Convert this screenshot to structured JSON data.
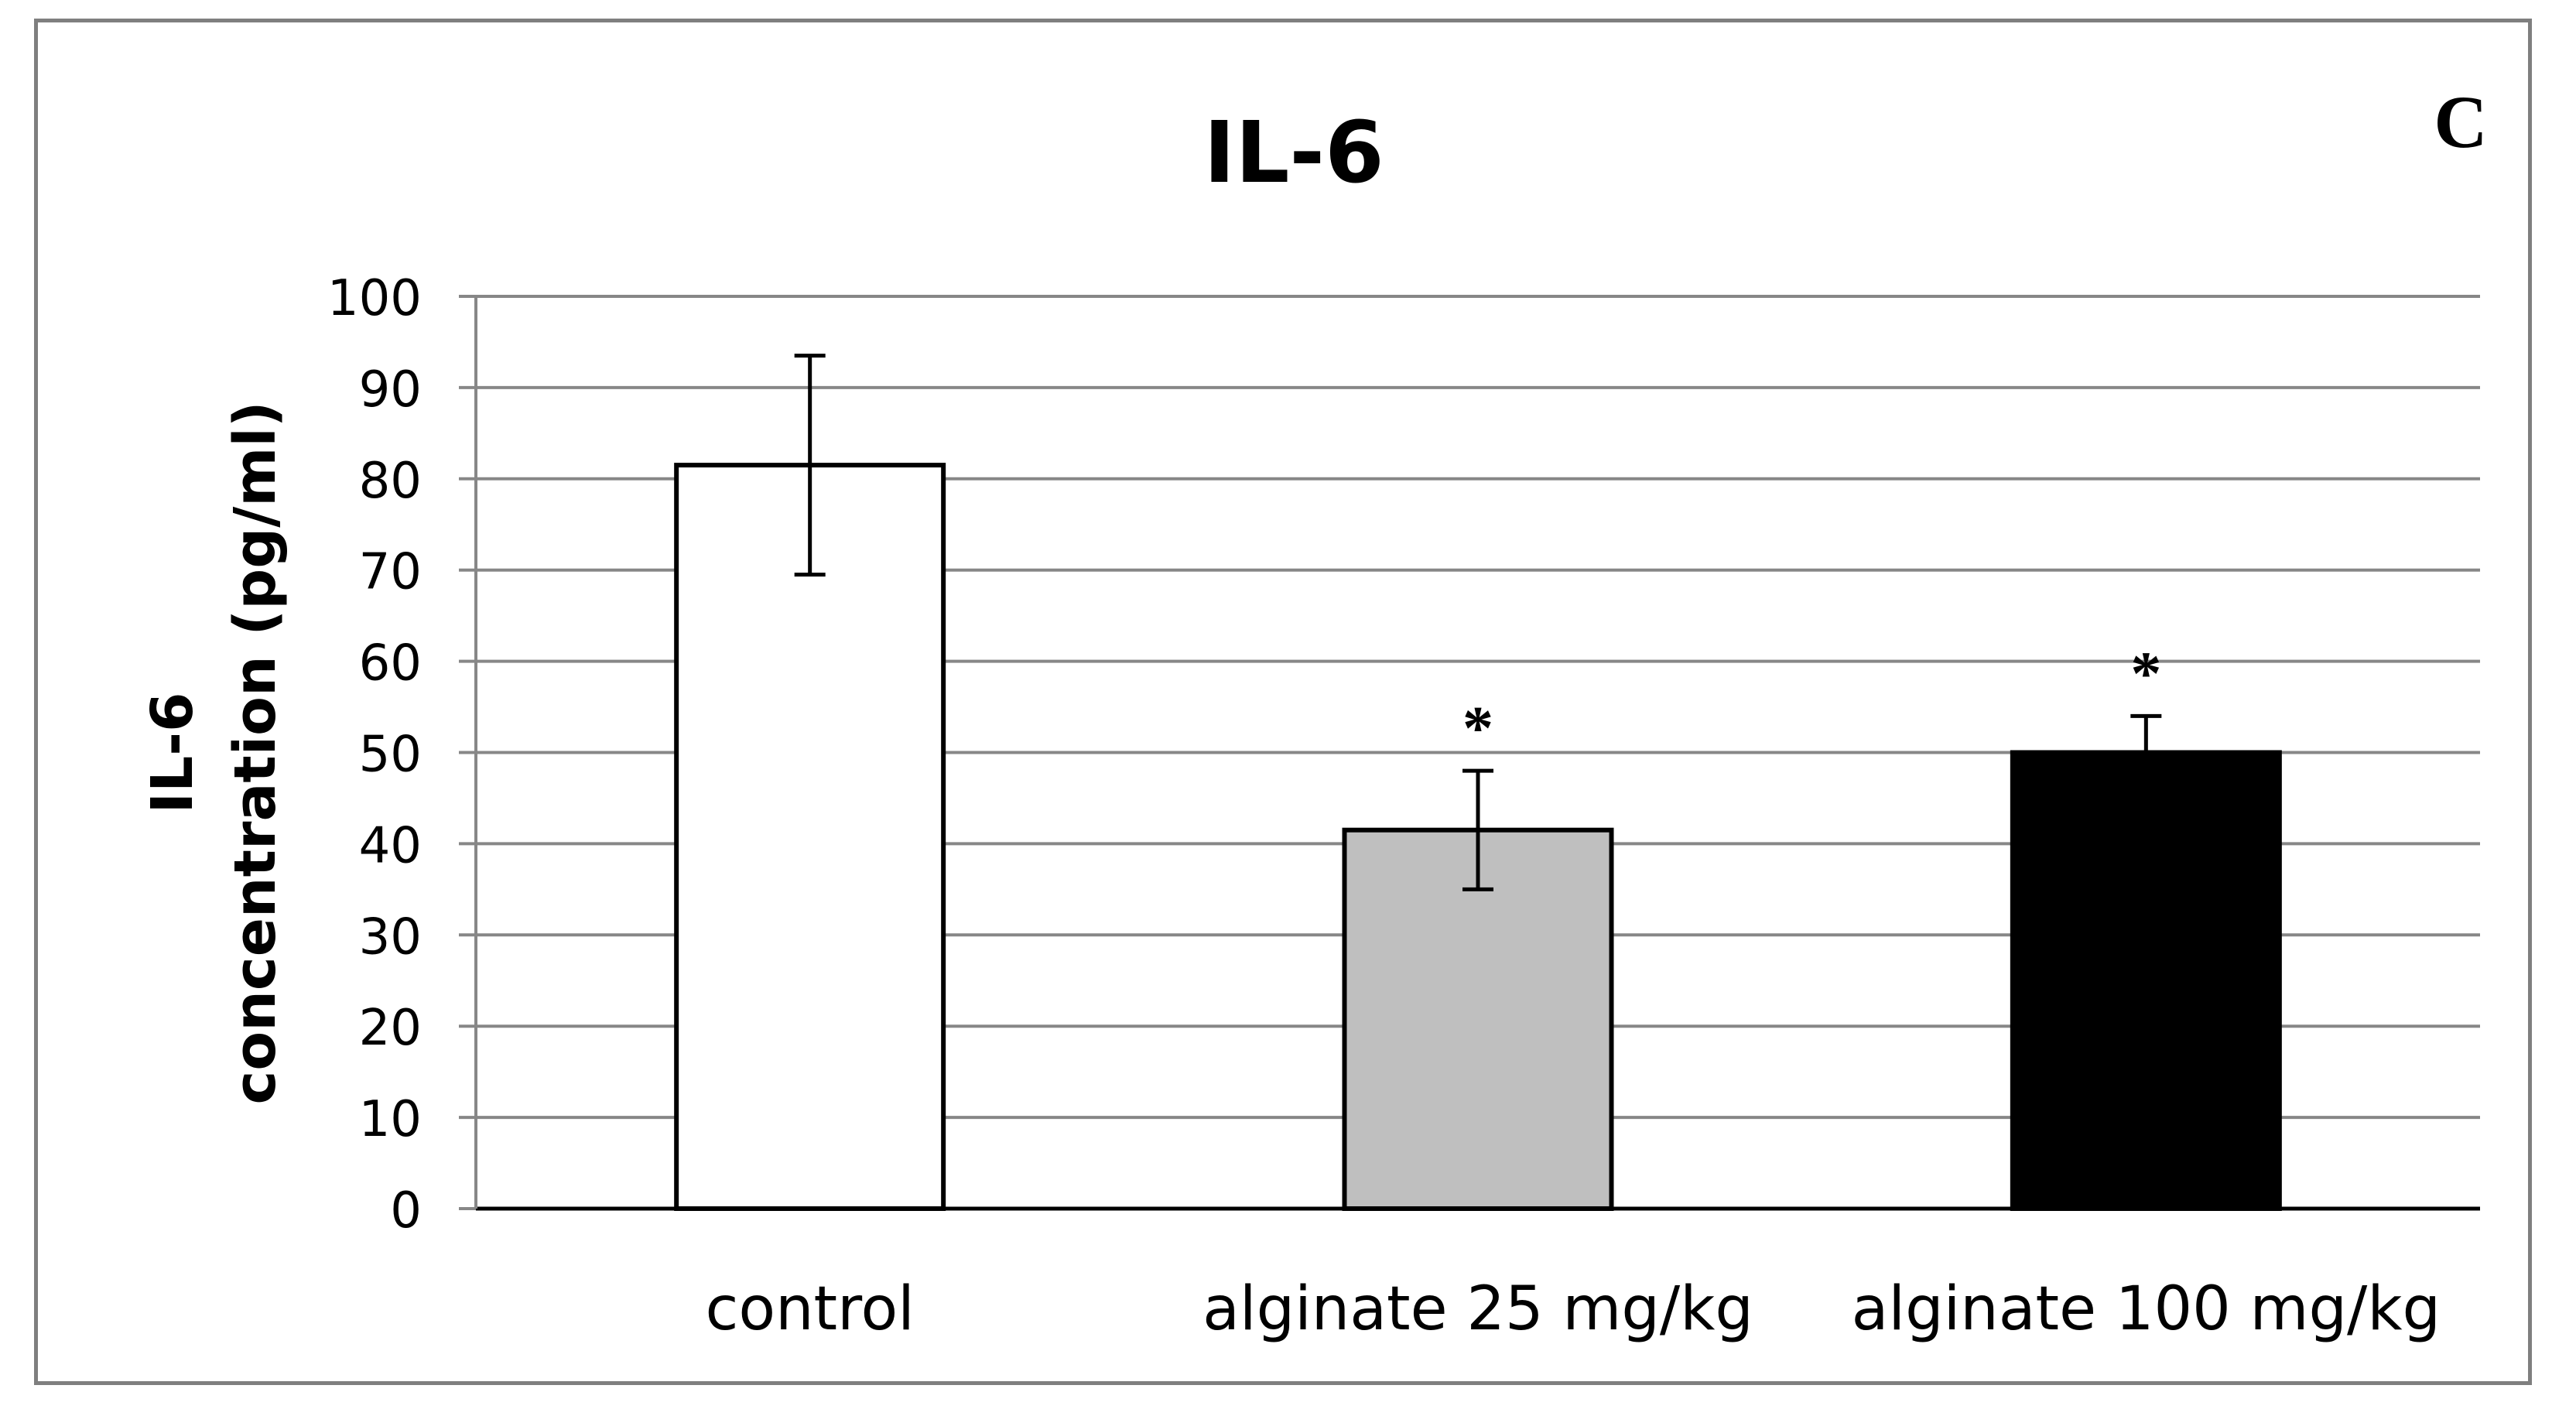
{
  "chart_data": {
    "type": "bar",
    "title": "IL-6",
    "panel_label": "C",
    "ylabel": "IL-6\nconcentration (pg/ml)",
    "xlabel": "",
    "ylim": [
      0,
      100
    ],
    "yticks": [
      0,
      10,
      20,
      30,
      40,
      50,
      60,
      70,
      80,
      90,
      100
    ],
    "grid": true,
    "legend": "none",
    "categories": [
      "control",
      "alginate 25 mg/kg",
      "alginate 100 mg/kg"
    ],
    "values": [
      81.5,
      41.5,
      50
    ],
    "error": [
      12,
      6.5,
      4
    ],
    "significance": [
      "",
      "*",
      "*"
    ],
    "colors": [
      "#ffffff",
      "#bfbfbf",
      "#000000"
    ]
  }
}
